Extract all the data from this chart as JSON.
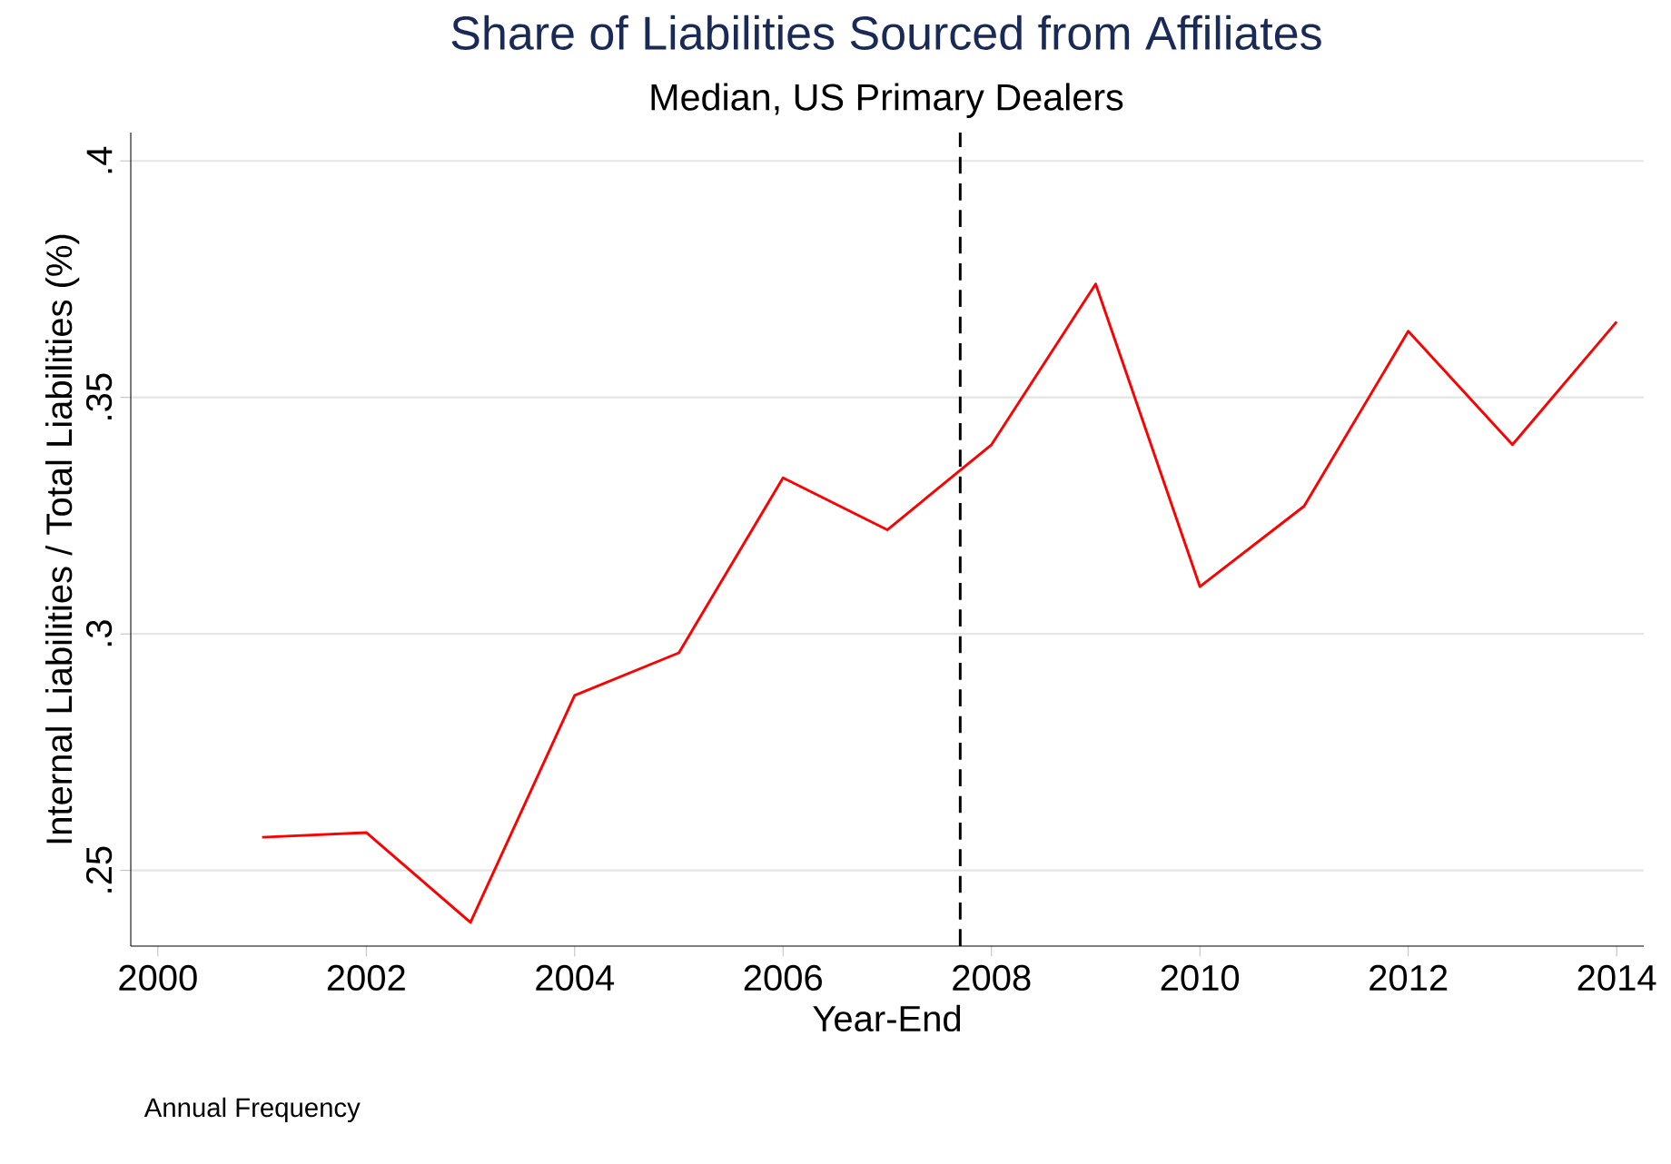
{
  "chart_data": {
    "type": "line",
    "title": "Share of Liabilities Sourced from Affiliates",
    "subtitle": "Median, US Primary Dealers",
    "xlabel": "Year-End",
    "ylabel": "Internal Liabilities / Total Liabilities (%)",
    "x": [
      2001,
      2002,
      2003,
      2004,
      2005,
      2006,
      2007,
      2008,
      2009,
      2010,
      2011,
      2012,
      2013,
      2014
    ],
    "series": [
      {
        "color": "#ff0000",
        "values": [
          0.257,
          0.258,
          0.239,
          0.287,
          0.296,
          0.333,
          0.322,
          0.34,
          0.374,
          0.31,
          0.327,
          0.364,
          0.34,
          0.366
        ]
      }
    ],
    "xlim": [
      1999.74,
      2014.26
    ],
    "ylim": [
      0.234,
      0.406
    ],
    "xticks": [
      2000,
      2002,
      2004,
      2006,
      2008,
      2010,
      2012,
      2014
    ],
    "yticks": [
      {
        "value": 0.25,
        "label": ".25"
      },
      {
        "value": 0.3,
        "label": ".3"
      },
      {
        "value": 0.35,
        "label": ".35"
      },
      {
        "value": 0.4,
        "label": ".4"
      }
    ],
    "grid": "y",
    "marker": "none",
    "line_style": "solid",
    "ref_lines": [
      {
        "axis": "x",
        "value": 2007.7,
        "color": "#000000",
        "line_style": "dashed"
      }
    ],
    "annotations": [
      "Annual Frequency"
    ]
  }
}
